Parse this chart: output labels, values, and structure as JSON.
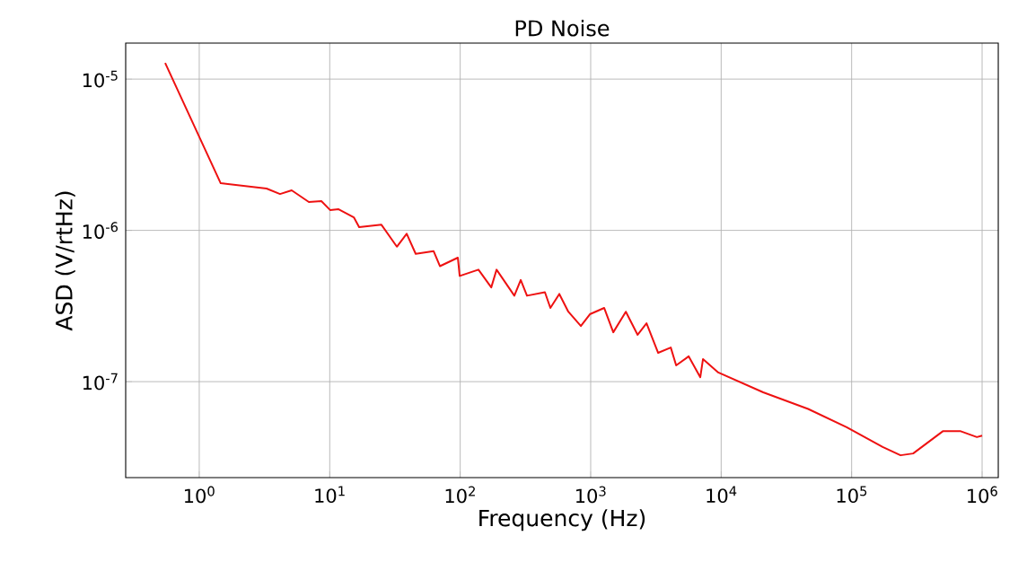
{
  "chart_data": {
    "type": "line",
    "title": "PD Noise",
    "xlabel": "Frequency (Hz)",
    "ylabel": "ASD (V/rtHz)",
    "log": "xy",
    "grid": true,
    "xlim": [
      0.273,
      1330000
    ],
    "ylim": [
      2.32e-08,
      1.73e-05
    ],
    "xticks": [
      {
        "value": 1,
        "label": "10$^{0}$"
      },
      {
        "value": 10,
        "label": "10$^{1}$"
      },
      {
        "value": 100,
        "label": "10$^{2}$"
      },
      {
        "value": 1000,
        "label": "10$^{3}$"
      },
      {
        "value": 10000,
        "label": "10$^{4}$"
      },
      {
        "value": 100000,
        "label": "10$^{5}$"
      },
      {
        "value": 1000000,
        "label": "10$^{6}$"
      }
    ],
    "yticks": [
      {
        "value": 1e-07,
        "label": "10$^{-7}$"
      },
      {
        "value": 1e-06,
        "label": "10$^{-6}$"
      },
      {
        "value": 1e-05,
        "label": "10$^{-5}$"
      }
    ],
    "series": [
      {
        "color": "#ee1111",
        "x": [
          0.548,
          1.46,
          3.28,
          4.16,
          5.11,
          6.92,
          8.63,
          10.1,
          11.7,
          15.3,
          16.8,
          24.9,
          32.7,
          38.9,
          45.6,
          62.5,
          69.9,
          95.9,
          99.1,
          138,
          173,
          190,
          260,
          291,
          325,
          446,
          491,
          575,
          674,
          841,
          986,
          1270,
          1490,
          1860,
          2290,
          2680,
          3290,
          4110,
          4520,
          5640,
          6920,
          7260,
          9510,
          21000,
          46400,
          91600,
          173000,
          237000,
          296000,
          500000,
          686000,
          912000,
          1000000
        ],
        "values": [
          1.28e-05,
          2.05e-06,
          1.89e-06,
          1.74e-06,
          1.84e-06,
          1.54e-06,
          1.56e-06,
          1.36e-06,
          1.38e-06,
          1.22e-06,
          1.05e-06,
          1.09e-06,
          7.8e-07,
          9.5e-07,
          7e-07,
          7.3e-07,
          5.8e-07,
          6.6e-07,
          5e-07,
          5.5e-07,
          4.2e-07,
          5.5e-07,
          3.7e-07,
          4.7e-07,
          3.7e-07,
          3.9e-07,
          3.07e-07,
          3.8e-07,
          2.9e-07,
          2.33e-07,
          2.79e-07,
          3.07e-07,
          2.12e-07,
          2.9e-07,
          2.04e-07,
          2.43e-07,
          1.55e-07,
          1.68e-07,
          1.28e-07,
          1.47e-07,
          1.07e-07,
          1.41e-07,
          1.15e-07,
          8.5e-08,
          6.6e-08,
          5e-08,
          3.7e-08,
          3.26e-08,
          3.35e-08,
          4.7e-08,
          4.7e-08,
          4.3e-08,
          4.4e-08
        ]
      }
    ]
  }
}
